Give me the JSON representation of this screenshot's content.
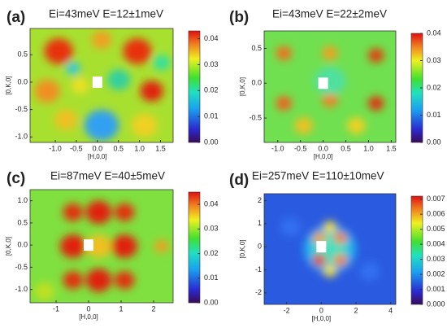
{
  "chart_data": [
    {
      "type": "heatmap",
      "panel_label": "(a)",
      "title": "Ei=43meV E=12±1meV",
      "x_label": "[H,0,0]",
      "y_label": "[0,K,0]",
      "xlim": [
        -1.6,
        1.8
      ],
      "ylim": [
        -1.1,
        0.98
      ],
      "xticks": [
        {
          "value": -1,
          "label": "-1.0"
        },
        -0.5,
        {
          "value": 0,
          "label": "0.0"
        },
        0.5,
        {
          "value": 1,
          "label": "1.0"
        },
        1.5
      ],
      "yticks": [
        0.5,
        {
          "value": 0,
          "label": "0.0"
        },
        -0.5,
        {
          "value": -1,
          "label": "-1.0"
        }
      ],
      "clim": [
        0,
        0.043
      ],
      "cticks": [
        {
          "value": 0,
          "label": "0.00"
        },
        0.01,
        0.02,
        0.03,
        0.04
      ]
    },
    {
      "type": "heatmap",
      "panel_label": "(b)",
      "title": "Ei=43meV E=22±2meV",
      "x_label": "[H,0,0]",
      "y_label": "[0,K,0]",
      "xlim": [
        -1.3,
        1.6
      ],
      "ylim": [
        -0.85,
        0.75
      ],
      "xticks": [
        {
          "value": -1,
          "label": "-1.0"
        },
        -0.5,
        {
          "value": 0,
          "label": "0.0"
        },
        0.5,
        {
          "value": 1,
          "label": "1.0"
        },
        1.5
      ],
      "yticks": [
        0.5,
        {
          "value": 0,
          "label": "0.0"
        },
        -0.5
      ],
      "clim": [
        0,
        0.04
      ],
      "cticks": [
        {
          "value": 0,
          "label": "0.00"
        },
        0.01,
        0.02,
        0.03,
        0.04
      ]
    },
    {
      "type": "heatmap",
      "panel_label": "(c)",
      "title": "Ei=87meV E=40±5meV",
      "x_label": "[H,0,0]",
      "y_label": "[0,K,0]",
      "xlim": [
        -1.8,
        2.6
      ],
      "ylim": [
        -1.3,
        1.25
      ],
      "xticks": [
        -1,
        0,
        1,
        2
      ],
      "yticks": [
        {
          "value": 1,
          "label": "1.0"
        },
        0.5,
        {
          "value": 0,
          "label": "0.0"
        },
        -0.5,
        {
          "value": -1,
          "label": "-1.0"
        }
      ],
      "clim": [
        0,
        0.045
      ],
      "cticks": [
        {
          "value": 0,
          "label": "0.00"
        },
        0.01,
        0.02,
        0.03,
        0.04
      ]
    },
    {
      "type": "heatmap",
      "panel_label": "(d)",
      "title": "Ei=257meV E=110±10meV",
      "x_label": "[H,0,0]",
      "y_label": "[0,K,0]",
      "xlim": [
        -3.3,
        4.3
      ],
      "ylim": [
        -2.5,
        2.3
      ],
      "xticks": [
        -2,
        0,
        2,
        4
      ],
      "yticks": [
        2,
        1,
        0,
        -1,
        -2
      ],
      "clim": [
        0,
        0.0072
      ],
      "cticks": [
        {
          "value": 0,
          "label": "0.000"
        },
        0.001,
        0.002,
        0.003,
        0.004,
        0.005,
        0.006,
        0.007
      ]
    }
  ]
}
